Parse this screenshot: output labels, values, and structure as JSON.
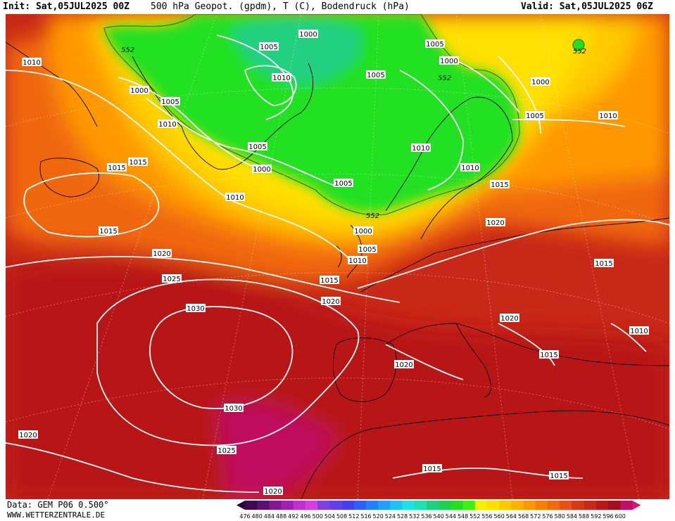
{
  "header": {
    "init": "Init: Sat,05JUL2025 00Z",
    "title": "500 hPa Geopot. (gpdm), T (C), Bodendruck (hPa)",
    "valid": "Valid: Sat,05JUL2025 06Z"
  },
  "footer": {
    "data_source": "Data: GEM P06 0.500°",
    "site": "WWW.WETTERZENTRALE.DE"
  },
  "legend": {
    "values": [
      "476",
      "480",
      "484",
      "488",
      "492",
      "496",
      "500",
      "504",
      "508",
      "512",
      "516",
      "520",
      "524",
      "528",
      "532",
      "536",
      "540",
      "544",
      "548",
      "552",
      "556",
      "560",
      "564",
      "568",
      "572",
      "576",
      "580",
      "584",
      "588",
      "592",
      "596",
      "600"
    ],
    "colors": [
      "#3d0a4f",
      "#5a1070",
      "#801890",
      "#a020b0",
      "#c030d0",
      "#d040e0",
      "#8040e0",
      "#6040e8",
      "#4040f0",
      "#3060f8",
      "#2080ff",
      "#20a0ff",
      "#20c0f0",
      "#20e0e0",
      "#20e0b0",
      "#20d080",
      "#20d050",
      "#20e020",
      "#40f010",
      "#f0f000",
      "#ffe000",
      "#ffc800",
      "#ffb000",
      "#ff9800",
      "#f88000",
      "#f06810",
      "#e85018",
      "#d83818",
      "#c82818",
      "#b81818",
      "#a01020",
      "#c01060"
    ]
  },
  "isobars": {
    "labels": [
      "1000",
      "1005",
      "1010",
      "1015",
      "1020",
      "1025",
      "1030"
    ]
  },
  "thickness_label": "552",
  "colors": {
    "green_low": "#20e020",
    "yellow": "#ffe000",
    "orange": "#ff9800",
    "red": "#d83818",
    "dark_red": "#b81818",
    "magenta": "#c01060",
    "isobar": "#ffffff",
    "coast": "#000000"
  }
}
